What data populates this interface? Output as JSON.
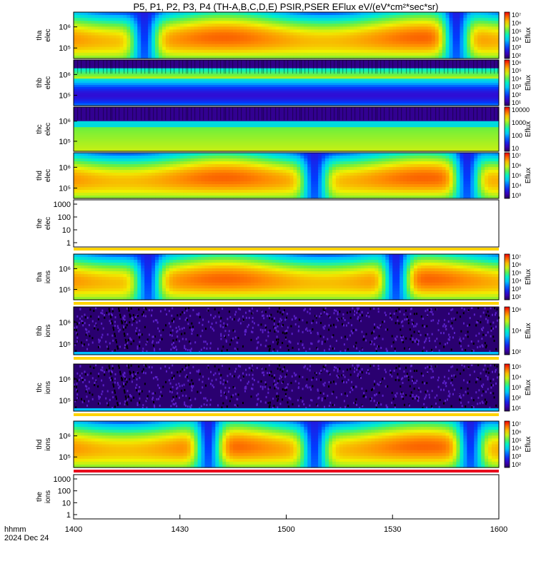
{
  "chart_data": {
    "type": "heatmap",
    "title": "P5, P1, P2, P3, P4 (TH-A,B,C,D,E) PSIR,PSER EFlux eV/(eV*cm²*sec*sr)",
    "xaxis": {
      "label_line1": "hhmm",
      "label_line2": "2024 Dec 24",
      "ticks": [
        "1400",
        "1430",
        "1500",
        "1530",
        "1600"
      ],
      "range_hhmm": [
        "1400",
        "1600"
      ]
    },
    "panels": [
      {
        "id": "tha-elec",
        "ylabel": [
          "tha",
          "elec"
        ],
        "yticks": [
          "10⁵",
          "10⁶"
        ],
        "colorbar": {
          "label": "Eflux",
          "ticks": [
            "10²",
            "10³",
            "10⁴",
            "10⁵",
            "10⁶",
            "10⁷"
          ]
        },
        "pattern": "dip",
        "dips_min": [
          20,
          108,
          168
        ]
      },
      {
        "id": "thb-elec",
        "ylabel": [
          "thb",
          "elec"
        ],
        "yticks": [
          "10⁵",
          "10⁶"
        ],
        "colorbar": {
          "label": "Eflux",
          "ticks": [
            "10¹",
            "10²",
            "10³",
            "10⁴",
            "10⁵",
            "10⁶"
          ]
        },
        "pattern": "bands"
      },
      {
        "id": "thc-elec",
        "ylabel": [
          "thc",
          "elec"
        ],
        "yticks": [
          "10⁵",
          "10⁶"
        ],
        "colorbar": {
          "label": "Eflux",
          "ticks": [
            "10",
            "100",
            "1000",
            "10000"
          ]
        },
        "pattern": "bands2"
      },
      {
        "id": "thd-elec",
        "ylabel": [
          "thd",
          "elec"
        ],
        "yticks": [
          "10⁵",
          "10⁶"
        ],
        "colorbar": {
          "label": "Eflux",
          "ticks": [
            "10³",
            "10⁴",
            "10⁵",
            "10⁶",
            "10⁷"
          ]
        },
        "pattern": "dip",
        "dips_min": [
          68,
          111,
          171
        ]
      },
      {
        "id": "the-elec",
        "ylabel": [
          "the",
          "elec"
        ],
        "yticks": [
          "1",
          "10",
          "100",
          "1000"
        ],
        "colorbar": null,
        "pattern": "empty"
      },
      {
        "id": "tha-ions",
        "ylabel": [
          "tha",
          "ions"
        ],
        "yticks": [
          "10⁵",
          "10⁶"
        ],
        "colorbar": {
          "label": "Eflux",
          "ticks": [
            "10²",
            "10³",
            "10⁴",
            "10⁵",
            "10⁶",
            "10⁷"
          ]
        },
        "pattern": "dip",
        "dips_min": [
          21,
          91,
          162
        ]
      },
      {
        "id": "thb-ions",
        "ylabel": [
          "thb",
          "ions"
        ],
        "yticks": [
          "10⁵",
          "10⁶"
        ],
        "colorbar": {
          "label": "Eflux",
          "ticks": [
            "10²",
            "10⁴",
            "10⁶"
          ]
        },
        "pattern": "noise"
      },
      {
        "id": "thc-ions",
        "ylabel": [
          "thc",
          "ions"
        ],
        "yticks": [
          "10⁵",
          "10⁶"
        ],
        "colorbar": {
          "label": "Eflux",
          "ticks": [
            "10¹",
            "10²",
            "10³",
            "10⁴",
            "10⁵"
          ]
        },
        "pattern": "noise"
      },
      {
        "id": "thd-ions",
        "ylabel": [
          "thd",
          "ions"
        ],
        "yticks": [
          "10⁵",
          "10⁶"
        ],
        "colorbar": {
          "label": "Eflux",
          "ticks": [
            "10²",
            "10³",
            "10⁴",
            "10⁵",
            "10⁶",
            "10⁷"
          ]
        },
        "pattern": "dip",
        "dips_min": [
          38,
          68,
          112,
          144
        ]
      },
      {
        "id": "the-ions",
        "ylabel": [
          "the",
          "ions"
        ],
        "yticks": [
          "1",
          "10",
          "100",
          "1000"
        ],
        "colorbar": null,
        "pattern": "empty"
      }
    ]
  }
}
